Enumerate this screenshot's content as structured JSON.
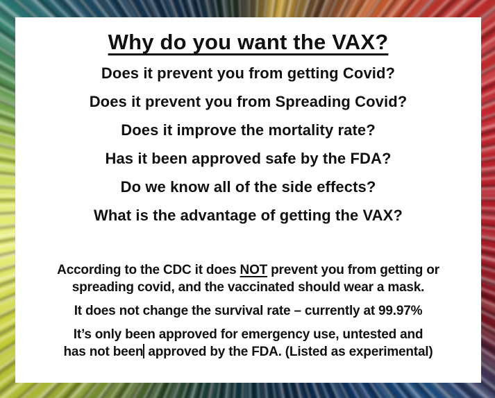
{
  "slide": {
    "title": "Why do you want the VAX?",
    "questions": [
      "Does it prevent you from getting Covid?",
      "Does it prevent you from Spreading Covid?",
      "Does it improve the mortality rate?",
      "Has it been approved safe by the FDA?",
      "Do we know all of the side effects?",
      "What is the advantage of getting the VAX?"
    ],
    "facts": {
      "cdc": {
        "line1_pre": "According to the CDC it does ",
        "line1_emph": "NOT",
        "line1_post": " prevent you from getting or",
        "line2": "spreading covid, and the vaccinated should wear a mask."
      },
      "survival": "It does not change the survival rate – currently at 99.97%",
      "fda": {
        "line1": "It’s only been approved for emergency use, untested and",
        "line2_before_caret": "has not been",
        "line2_after_caret": " approved by the FDA. (Listed as experimental)"
      }
    }
  },
  "colors": {
    "text": "#101010",
    "panel_background": "#ffffff",
    "border_top_gold": "#caa23c",
    "border_top_right_red": "#c1252e",
    "border_bottom_right_navy": "#0a2440",
    "border_bottom_left_green": "#6d8431",
    "border_left_yellow": "#dfe96c",
    "border_top_left_teal": "#1f4e64"
  }
}
